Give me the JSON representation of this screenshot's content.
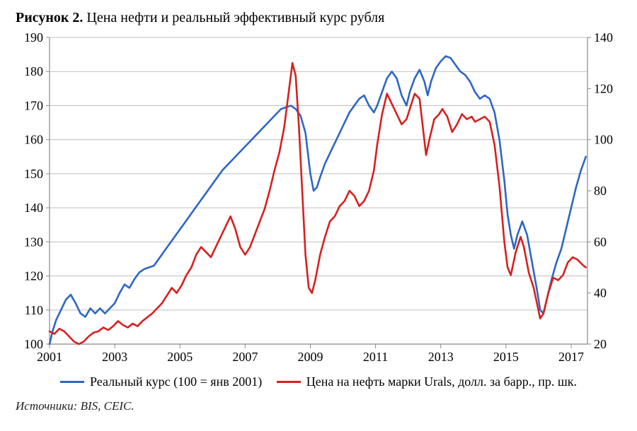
{
  "title_prefix": "Рисунок 2.",
  "title_text": "Цена нефти и реальный эффективный курс рубля",
  "source_text": "Источники: BIS, CEIC.",
  "chart": {
    "type": "line-dual-axis",
    "background_color": "#ffffff",
    "grid_color": "#bfbfbf",
    "axis_color": "#888888",
    "tick_fontsize": 18,
    "x": {
      "min": 2001,
      "max": 2017.5,
      "ticks": [
        2001,
        2003,
        2005,
        2007,
        2009,
        2011,
        2013,
        2015,
        2017
      ]
    },
    "y_left": {
      "min": 100,
      "max": 190,
      "ticks": [
        100,
        110,
        120,
        130,
        140,
        150,
        160,
        170,
        180,
        190
      ]
    },
    "y_right": {
      "min": 20,
      "max": 140,
      "ticks": [
        20,
        40,
        60,
        80,
        100,
        120,
        140
      ]
    },
    "series": [
      {
        "key": "reer",
        "axis": "left",
        "color": "#2f66c4",
        "line_width": 2.6,
        "data": [
          [
            2001.0,
            100.0
          ],
          [
            2001.1,
            104.0
          ],
          [
            2001.2,
            107.0
          ],
          [
            2001.35,
            110.0
          ],
          [
            2001.5,
            113.0
          ],
          [
            2001.65,
            114.5
          ],
          [
            2001.8,
            112.0
          ],
          [
            2001.95,
            109.0
          ],
          [
            2002.1,
            108.0
          ],
          [
            2002.25,
            110.5
          ],
          [
            2002.4,
            109.0
          ],
          [
            2002.55,
            110.5
          ],
          [
            2002.7,
            109.0
          ],
          [
            2002.85,
            110.5
          ],
          [
            2003.0,
            112.0
          ],
          [
            2003.15,
            115.0
          ],
          [
            2003.3,
            117.5
          ],
          [
            2003.45,
            116.5
          ],
          [
            2003.6,
            119.0
          ],
          [
            2003.75,
            121.0
          ],
          [
            2003.9,
            122.0
          ],
          [
            2004.05,
            122.5
          ],
          [
            2004.2,
            123.0
          ],
          [
            2004.35,
            125.0
          ],
          [
            2004.5,
            127.0
          ],
          [
            2004.65,
            129.0
          ],
          [
            2004.8,
            131.0
          ],
          [
            2004.95,
            133.0
          ],
          [
            2005.1,
            135.0
          ],
          [
            2005.25,
            137.0
          ],
          [
            2005.4,
            139.0
          ],
          [
            2005.55,
            141.0
          ],
          [
            2005.7,
            143.0
          ],
          [
            2005.85,
            145.0
          ],
          [
            2006.0,
            147.0
          ],
          [
            2006.15,
            149.0
          ],
          [
            2006.3,
            151.0
          ],
          [
            2006.45,
            152.5
          ],
          [
            2006.6,
            154.0
          ],
          [
            2006.75,
            155.5
          ],
          [
            2006.9,
            157.0
          ],
          [
            2007.05,
            158.5
          ],
          [
            2007.2,
            160.0
          ],
          [
            2007.35,
            161.5
          ],
          [
            2007.5,
            163.0
          ],
          [
            2007.65,
            164.5
          ],
          [
            2007.8,
            166.0
          ],
          [
            2007.95,
            167.5
          ],
          [
            2008.1,
            169.0
          ],
          [
            2008.25,
            169.5
          ],
          [
            2008.4,
            170.0
          ],
          [
            2008.55,
            169.0
          ],
          [
            2008.7,
            167.0
          ],
          [
            2008.85,
            162.0
          ],
          [
            2009.0,
            150.0
          ],
          [
            2009.1,
            145.0
          ],
          [
            2009.2,
            146.0
          ],
          [
            2009.3,
            149.0
          ],
          [
            2009.45,
            153.0
          ],
          [
            2009.6,
            156.0
          ],
          [
            2009.75,
            159.0
          ],
          [
            2009.9,
            162.0
          ],
          [
            2010.05,
            165.0
          ],
          [
            2010.2,
            168.0
          ],
          [
            2010.35,
            170.0
          ],
          [
            2010.5,
            172.0
          ],
          [
            2010.65,
            173.0
          ],
          [
            2010.8,
            170.0
          ],
          [
            2010.95,
            168.0
          ],
          [
            2011.05,
            170.0
          ],
          [
            2011.2,
            174.0
          ],
          [
            2011.35,
            178.0
          ],
          [
            2011.5,
            180.0
          ],
          [
            2011.65,
            178.0
          ],
          [
            2011.8,
            173.0
          ],
          [
            2011.95,
            170.0
          ],
          [
            2012.05,
            174.0
          ],
          [
            2012.2,
            178.0
          ],
          [
            2012.35,
            180.5
          ],
          [
            2012.5,
            177.0
          ],
          [
            2012.6,
            173.0
          ],
          [
            2012.7,
            177.0
          ],
          [
            2012.85,
            181.0
          ],
          [
            2013.0,
            183.0
          ],
          [
            2013.15,
            184.5
          ],
          [
            2013.3,
            184.0
          ],
          [
            2013.45,
            182.0
          ],
          [
            2013.6,
            180.0
          ],
          [
            2013.75,
            179.0
          ],
          [
            2013.9,
            177.0
          ],
          [
            2014.05,
            174.0
          ],
          [
            2014.2,
            172.0
          ],
          [
            2014.35,
            173.0
          ],
          [
            2014.5,
            172.0
          ],
          [
            2014.65,
            168.0
          ],
          [
            2014.8,
            160.0
          ],
          [
            2014.95,
            148.0
          ],
          [
            2015.05,
            138.0
          ],
          [
            2015.15,
            132.0
          ],
          [
            2015.25,
            128.0
          ],
          [
            2015.35,
            132.0
          ],
          [
            2015.5,
            136.0
          ],
          [
            2015.65,
            132.0
          ],
          [
            2015.8,
            124.0
          ],
          [
            2015.95,
            116.0
          ],
          [
            2016.05,
            110.0
          ],
          [
            2016.15,
            109.0
          ],
          [
            2016.25,
            113.0
          ],
          [
            2016.4,
            119.0
          ],
          [
            2016.55,
            124.0
          ],
          [
            2016.7,
            128.0
          ],
          [
            2016.85,
            134.0
          ],
          [
            2017.0,
            140.0
          ],
          [
            2017.15,
            146.0
          ],
          [
            2017.3,
            151.0
          ],
          [
            2017.45,
            155.0
          ]
        ]
      },
      {
        "key": "urals",
        "axis": "right",
        "color": "#d6201f",
        "line_width": 2.6,
        "data": [
          [
            2001.0,
            25.0
          ],
          [
            2001.15,
            24.0
          ],
          [
            2001.3,
            26.0
          ],
          [
            2001.45,
            25.0
          ],
          [
            2001.6,
            23.0
          ],
          [
            2001.75,
            21.0
          ],
          [
            2001.9,
            20.0
          ],
          [
            2002.05,
            21.0
          ],
          [
            2002.2,
            23.0
          ],
          [
            2002.35,
            24.5
          ],
          [
            2002.5,
            25.0
          ],
          [
            2002.65,
            26.5
          ],
          [
            2002.8,
            25.5
          ],
          [
            2002.95,
            27.0
          ],
          [
            2003.1,
            29.0
          ],
          [
            2003.25,
            27.5
          ],
          [
            2003.4,
            26.5
          ],
          [
            2003.55,
            28.0
          ],
          [
            2003.7,
            27.0
          ],
          [
            2003.85,
            29.0
          ],
          [
            2004.0,
            30.5
          ],
          [
            2004.15,
            32.0
          ],
          [
            2004.3,
            34.0
          ],
          [
            2004.45,
            36.0
          ],
          [
            2004.6,
            39.0
          ],
          [
            2004.75,
            42.0
          ],
          [
            2004.9,
            40.0
          ],
          [
            2005.05,
            43.0
          ],
          [
            2005.2,
            47.0
          ],
          [
            2005.35,
            50.0
          ],
          [
            2005.5,
            55.0
          ],
          [
            2005.65,
            58.0
          ],
          [
            2005.8,
            56.0
          ],
          [
            2005.95,
            54.0
          ],
          [
            2006.1,
            58.0
          ],
          [
            2006.25,
            62.0
          ],
          [
            2006.4,
            66.0
          ],
          [
            2006.55,
            70.0
          ],
          [
            2006.7,
            65.0
          ],
          [
            2006.85,
            58.0
          ],
          [
            2007.0,
            55.0
          ],
          [
            2007.15,
            58.0
          ],
          [
            2007.3,
            63.0
          ],
          [
            2007.45,
            68.0
          ],
          [
            2007.6,
            73.0
          ],
          [
            2007.75,
            80.0
          ],
          [
            2007.9,
            88.0
          ],
          [
            2008.05,
            95.0
          ],
          [
            2008.2,
            105.0
          ],
          [
            2008.35,
            120.0
          ],
          [
            2008.45,
            130.0
          ],
          [
            2008.55,
            125.0
          ],
          [
            2008.65,
            105.0
          ],
          [
            2008.75,
            80.0
          ],
          [
            2008.85,
            55.0
          ],
          [
            2008.95,
            42.0
          ],
          [
            2009.05,
            40.0
          ],
          [
            2009.15,
            45.0
          ],
          [
            2009.3,
            55.0
          ],
          [
            2009.45,
            62.0
          ],
          [
            2009.6,
            68.0
          ],
          [
            2009.75,
            70.0
          ],
          [
            2009.9,
            74.0
          ],
          [
            2010.05,
            76.0
          ],
          [
            2010.2,
            80.0
          ],
          [
            2010.35,
            78.0
          ],
          [
            2010.5,
            74.0
          ],
          [
            2010.65,
            76.0
          ],
          [
            2010.8,
            80.0
          ],
          [
            2010.95,
            88.0
          ],
          [
            2011.05,
            98.0
          ],
          [
            2011.2,
            110.0
          ],
          [
            2011.35,
            118.0
          ],
          [
            2011.5,
            114.0
          ],
          [
            2011.65,
            110.0
          ],
          [
            2011.8,
            106.0
          ],
          [
            2011.95,
            108.0
          ],
          [
            2012.05,
            112.0
          ],
          [
            2012.2,
            118.0
          ],
          [
            2012.35,
            116.0
          ],
          [
            2012.45,
            105.0
          ],
          [
            2012.55,
            94.0
          ],
          [
            2012.65,
            100.0
          ],
          [
            2012.8,
            108.0
          ],
          [
            2012.95,
            110.0
          ],
          [
            2013.05,
            112.0
          ],
          [
            2013.2,
            109.0
          ],
          [
            2013.35,
            103.0
          ],
          [
            2013.5,
            106.0
          ],
          [
            2013.65,
            110.0
          ],
          [
            2013.8,
            108.0
          ],
          [
            2013.95,
            109.0
          ],
          [
            2014.05,
            107.0
          ],
          [
            2014.2,
            108.0
          ],
          [
            2014.35,
            109.0
          ],
          [
            2014.5,
            107.0
          ],
          [
            2014.65,
            98.0
          ],
          [
            2014.8,
            82.0
          ],
          [
            2014.95,
            60.0
          ],
          [
            2015.05,
            50.0
          ],
          [
            2015.15,
            47.0
          ],
          [
            2015.3,
            56.0
          ],
          [
            2015.45,
            62.0
          ],
          [
            2015.55,
            58.0
          ],
          [
            2015.7,
            48.0
          ],
          [
            2015.85,
            42.0
          ],
          [
            2015.95,
            36.0
          ],
          [
            2016.05,
            30.0
          ],
          [
            2016.15,
            32.0
          ],
          [
            2016.3,
            40.0
          ],
          [
            2016.45,
            46.0
          ],
          [
            2016.6,
            45.0
          ],
          [
            2016.75,
            47.0
          ],
          [
            2016.9,
            52.0
          ],
          [
            2017.05,
            54.0
          ],
          [
            2017.2,
            53.0
          ],
          [
            2017.35,
            51.0
          ],
          [
            2017.45,
            50.0
          ]
        ]
      }
    ]
  },
  "legend": {
    "items": [
      {
        "key": "reer",
        "label": "Реальный курс (100 = янв 2001)"
      },
      {
        "key": "urals",
        "label": "Цена на нефть марки Urals, долл. за барр., пр. шк."
      }
    ]
  }
}
